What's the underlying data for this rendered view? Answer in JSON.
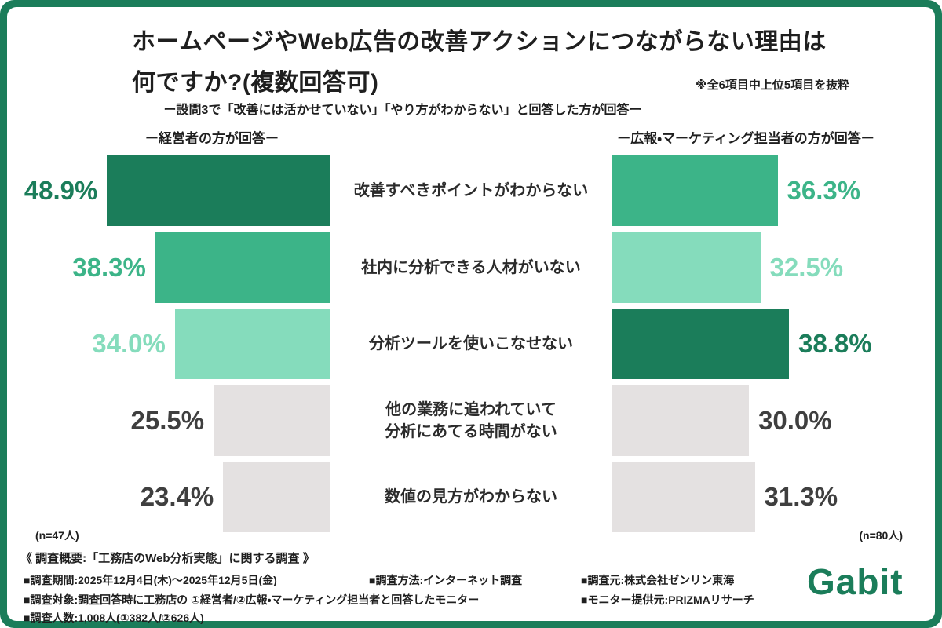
{
  "frame_color": "#1b7d5a",
  "header": {
    "title_lines": [
      "ホームページやWeb広告の改善アクションにつながらない理由は",
      "何ですか?(複数回答可)"
    ],
    "note": "※全6項目中上位5項目を抜粋",
    "subtitle": "ー設問3で「改善には活かせていない」「やり方がわからない」と回答した方が回答ー"
  },
  "chart_data": {
    "type": "bar",
    "layout": "butterfly-horizontal",
    "title": "ホームページやWeb広告の改善アクションにつながらない理由は何ですか?(複数回答可)",
    "categories": [
      "改善すべきポイントがわからない",
      "社内に分析できる人材がいない",
      "分析ツールを使いこなせない",
      "他の業務に追われていて分析にあてる時間がない",
      "数値の見方がわからない"
    ],
    "category_lines": [
      [
        "改善すべきポイントがわからない"
      ],
      [
        "社内に分析できる人材がいない"
      ],
      [
        "分析ツールを使いこなせない"
      ],
      [
        "他の業務に追われていて",
        "分析にあてる時間がない"
      ],
      [
        "数値の見方がわからない"
      ]
    ],
    "series": [
      {
        "name": "経営者",
        "header": "ー経営者の方が回答ー",
        "n_label": "(n=47人)",
        "values": [
          48.9,
          38.3,
          34.0,
          25.5,
          23.4
        ],
        "labels": [
          "48.9%",
          "38.3%",
          "34.0%",
          "25.5%",
          "23.4%"
        ],
        "colors": [
          "dark",
          "mid",
          "light",
          "gray",
          "gray"
        ]
      },
      {
        "name": "広報・マーケティング担当者",
        "header": "ー広報・マーケティング担当者の方が回答ー",
        "n_label": "(n=80人)",
        "values": [
          36.3,
          32.5,
          38.8,
          30.0,
          31.3
        ],
        "labels": [
          "36.3%",
          "32.5%",
          "38.8%",
          "30.0%",
          "31.3%"
        ],
        "colors": [
          "mid",
          "light",
          "dark",
          "gray",
          "gray"
        ]
      }
    ],
    "palette": {
      "dark": "#1b7d5a",
      "mid": "#3cb488",
      "light": "#85dcbc",
      "gray": "#e4e1e1"
    },
    "gray_text_color": "#3f3f3f",
    "xlim": [
      0,
      50
    ],
    "legend_position": "none",
    "grid": false
  },
  "footer": {
    "overview": "《 調査概要:「工務店のWeb分析実態」に関する調査 》",
    "items": [
      "■調査期間:2025年12月4日(木)〜2025年12月5日(金)",
      "■調査方法:インターネット調査",
      "■調査元:株式会社ゼンリン東海",
      "■調査対象:調査回答時に工務店の ①経営者/②広報・マーケティング担当者と回答したモニター",
      "■モニター提供元:PRIZMAリサーチ",
      "■調査人数:1,008人(①382人/②626人)"
    ],
    "logo": "Gabit"
  }
}
